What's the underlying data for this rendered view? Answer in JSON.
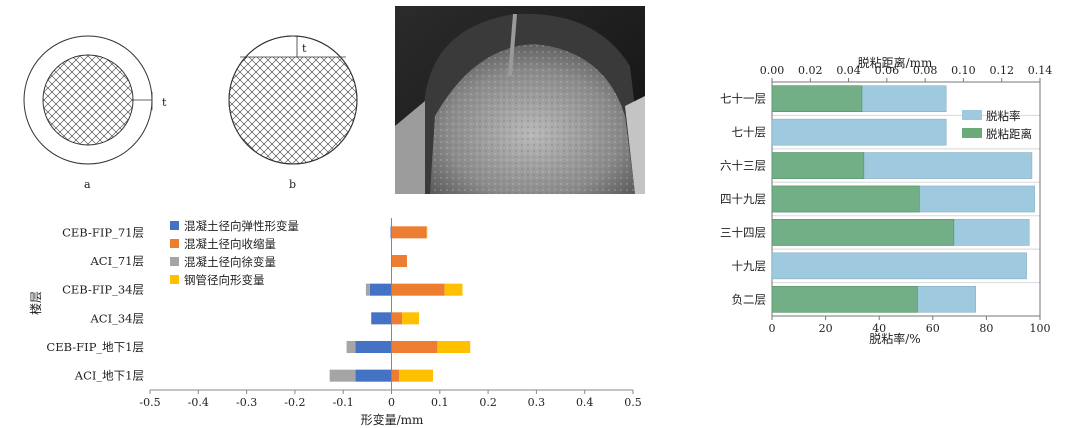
{
  "figure_ab": {
    "t_label_a": "t",
    "t_label_b": "t",
    "caption_a": "a",
    "caption_b": "b"
  },
  "photo": {
    "description": "photograph of cut concrete-filled steel tube section"
  },
  "chart_data": [
    {
      "type": "bar",
      "orientation": "horizontal",
      "stacked": true,
      "categories": [
        "CEB-FIP_71层",
        "ACI_71层",
        "CEB-FIP_34层",
        "ACI_34层",
        "CEB-FIP_地下1层",
        "ACI_地下1层"
      ],
      "series": [
        {
          "name": "混凝土径向弹性形变量",
          "color": "#4472c4",
          "values": [
            -0.002,
            0,
            -0.045,
            -0.042,
            -0.075,
            -0.075
          ]
        },
        {
          "name": "混凝土径向收缩量",
          "color": "#ed7d31",
          "values": [
            0.073,
            0.032,
            0.11,
            0.022,
            0.095,
            0.016
          ]
        },
        {
          "name": "混凝土径向徐变量",
          "color": "#a5a5a5",
          "values": [
            0,
            0,
            -0.008,
            0,
            -0.018,
            -0.053
          ]
        },
        {
          "name": "钢管径向形变量",
          "color": "#ffc000",
          "values": [
            0.001,
            0,
            0.037,
            0.035,
            0.068,
            0.07
          ]
        }
      ],
      "xlabel": "形变量/mm",
      "ylabel": "楼层",
      "xlim": [
        -0.5,
        0.5
      ],
      "xticks": [
        "-0.5",
        "-0.4",
        "-0.3",
        "-0.2",
        "-0.1",
        "0",
        "0.1",
        "0.2",
        "0.3",
        "0.4",
        "0.5"
      ],
      "legend": "top-left"
    },
    {
      "type": "bar",
      "orientation": "horizontal",
      "categories": [
        "七十一层",
        "七十层",
        "六十三层",
        "四十九层",
        "三十四层",
        "十九层",
        "负二层"
      ],
      "series": [
        {
          "name": "脱粘率",
          "color": "#9ec9de",
          "axis": "bottom",
          "values": [
            65,
            65,
            97,
            98,
            96,
            95,
            76
          ]
        },
        {
          "name": "脱粘距离",
          "color": "#6aaa78",
          "axis": "top",
          "values": [
            0.047,
            0,
            0.048,
            0.077,
            0.095,
            0,
            0.076
          ]
        }
      ],
      "xlabel": "脱粘率/%",
      "xlim": [
        0,
        100
      ],
      "xticks": [
        "0",
        "20",
        "40",
        "60",
        "80",
        "100"
      ],
      "x2label": "脱粘距离/mm",
      "x2lim": [
        0,
        0.14
      ],
      "x2ticks": [
        "0.00",
        "0.02",
        "0.04",
        "0.06",
        "0.08",
        "0.10",
        "0.12",
        "0.14"
      ],
      "legend": "top-right"
    }
  ]
}
